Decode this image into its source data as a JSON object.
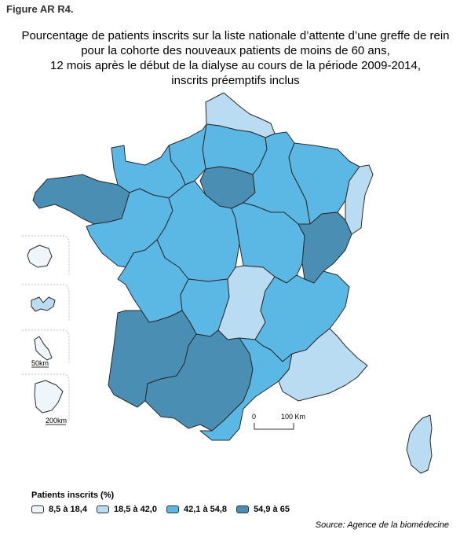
{
  "figure_label": "Figure AR R4.",
  "title_lines": [
    "Pourcentage de patients inscrits sur la liste nationale d’attente d’une greffe de rein",
    "pour la cohorte des nouveaux patients de moins de 60 ans,",
    "12 mois après le début de la dialyse au cours de la période 2009-2014,",
    "inscrits préemptifs inclus"
  ],
  "colors": {
    "class1": "#eef6fc",
    "class2": "#b9dcf2",
    "class3": "#5bb8e5",
    "class4": "#4a8fb3",
    "border": "#2a2a2a"
  },
  "regions": [
    {
      "name": "Nord-Pas-de-Calais",
      "class": "class2"
    },
    {
      "name": "Picardie",
      "class": "class3"
    },
    {
      "name": "Haute-Normandie",
      "class": "class3"
    },
    {
      "name": "Basse-Normandie",
      "class": "class3"
    },
    {
      "name": "Bretagne",
      "class": "class4"
    },
    {
      "name": "Pays de la Loire",
      "class": "class3"
    },
    {
      "name": "Centre",
      "class": "class3"
    },
    {
      "name": "Ile-de-France",
      "class": "class4"
    },
    {
      "name": "Champagne-Ardenne",
      "class": "class3"
    },
    {
      "name": "Lorraine",
      "class": "class3"
    },
    {
      "name": "Alsace",
      "class": "class2"
    },
    {
      "name": "Bourgogne",
      "class": "class3"
    },
    {
      "name": "Franche-Comte",
      "class": "class4"
    },
    {
      "name": "Poitou-Charentes",
      "class": "class3"
    },
    {
      "name": "Limousin",
      "class": "class3"
    },
    {
      "name": "Auvergne",
      "class": "class2"
    },
    {
      "name": "Rhone-Alpes",
      "class": "class3"
    },
    {
      "name": "Aquitaine",
      "class": "class4"
    },
    {
      "name": "Midi-Pyrenees",
      "class": "class4"
    },
    {
      "name": "Languedoc-Roussillon",
      "class": "class3"
    },
    {
      "name": "Provence-Alpes-Cote d'Azur",
      "class": "class2"
    },
    {
      "name": "Corse",
      "class": "class2"
    },
    {
      "name": "La Reunion",
      "class": "class1"
    },
    {
      "name": "Guadeloupe",
      "class": "class2"
    },
    {
      "name": "Martinique",
      "class": "class1"
    },
    {
      "name": "Guyane",
      "class": "class1"
    }
  ],
  "inset_scale_small": "50km",
  "inset_scale_large": "200km",
  "scale_bar": {
    "start": "0",
    "end": "100 Km"
  },
  "legend": {
    "title": "Patients inscrits (%)",
    "items": [
      {
        "label": "8,5 à 18,4",
        "class": "class1"
      },
      {
        "label": "18,5 à 42,0",
        "class": "class2"
      },
      {
        "label": "42,1 à 54,8",
        "class": "class3"
      },
      {
        "label": "54,9 à 65",
        "class": "class4"
      }
    ]
  },
  "source": "Source: Agence de la biomédecine"
}
